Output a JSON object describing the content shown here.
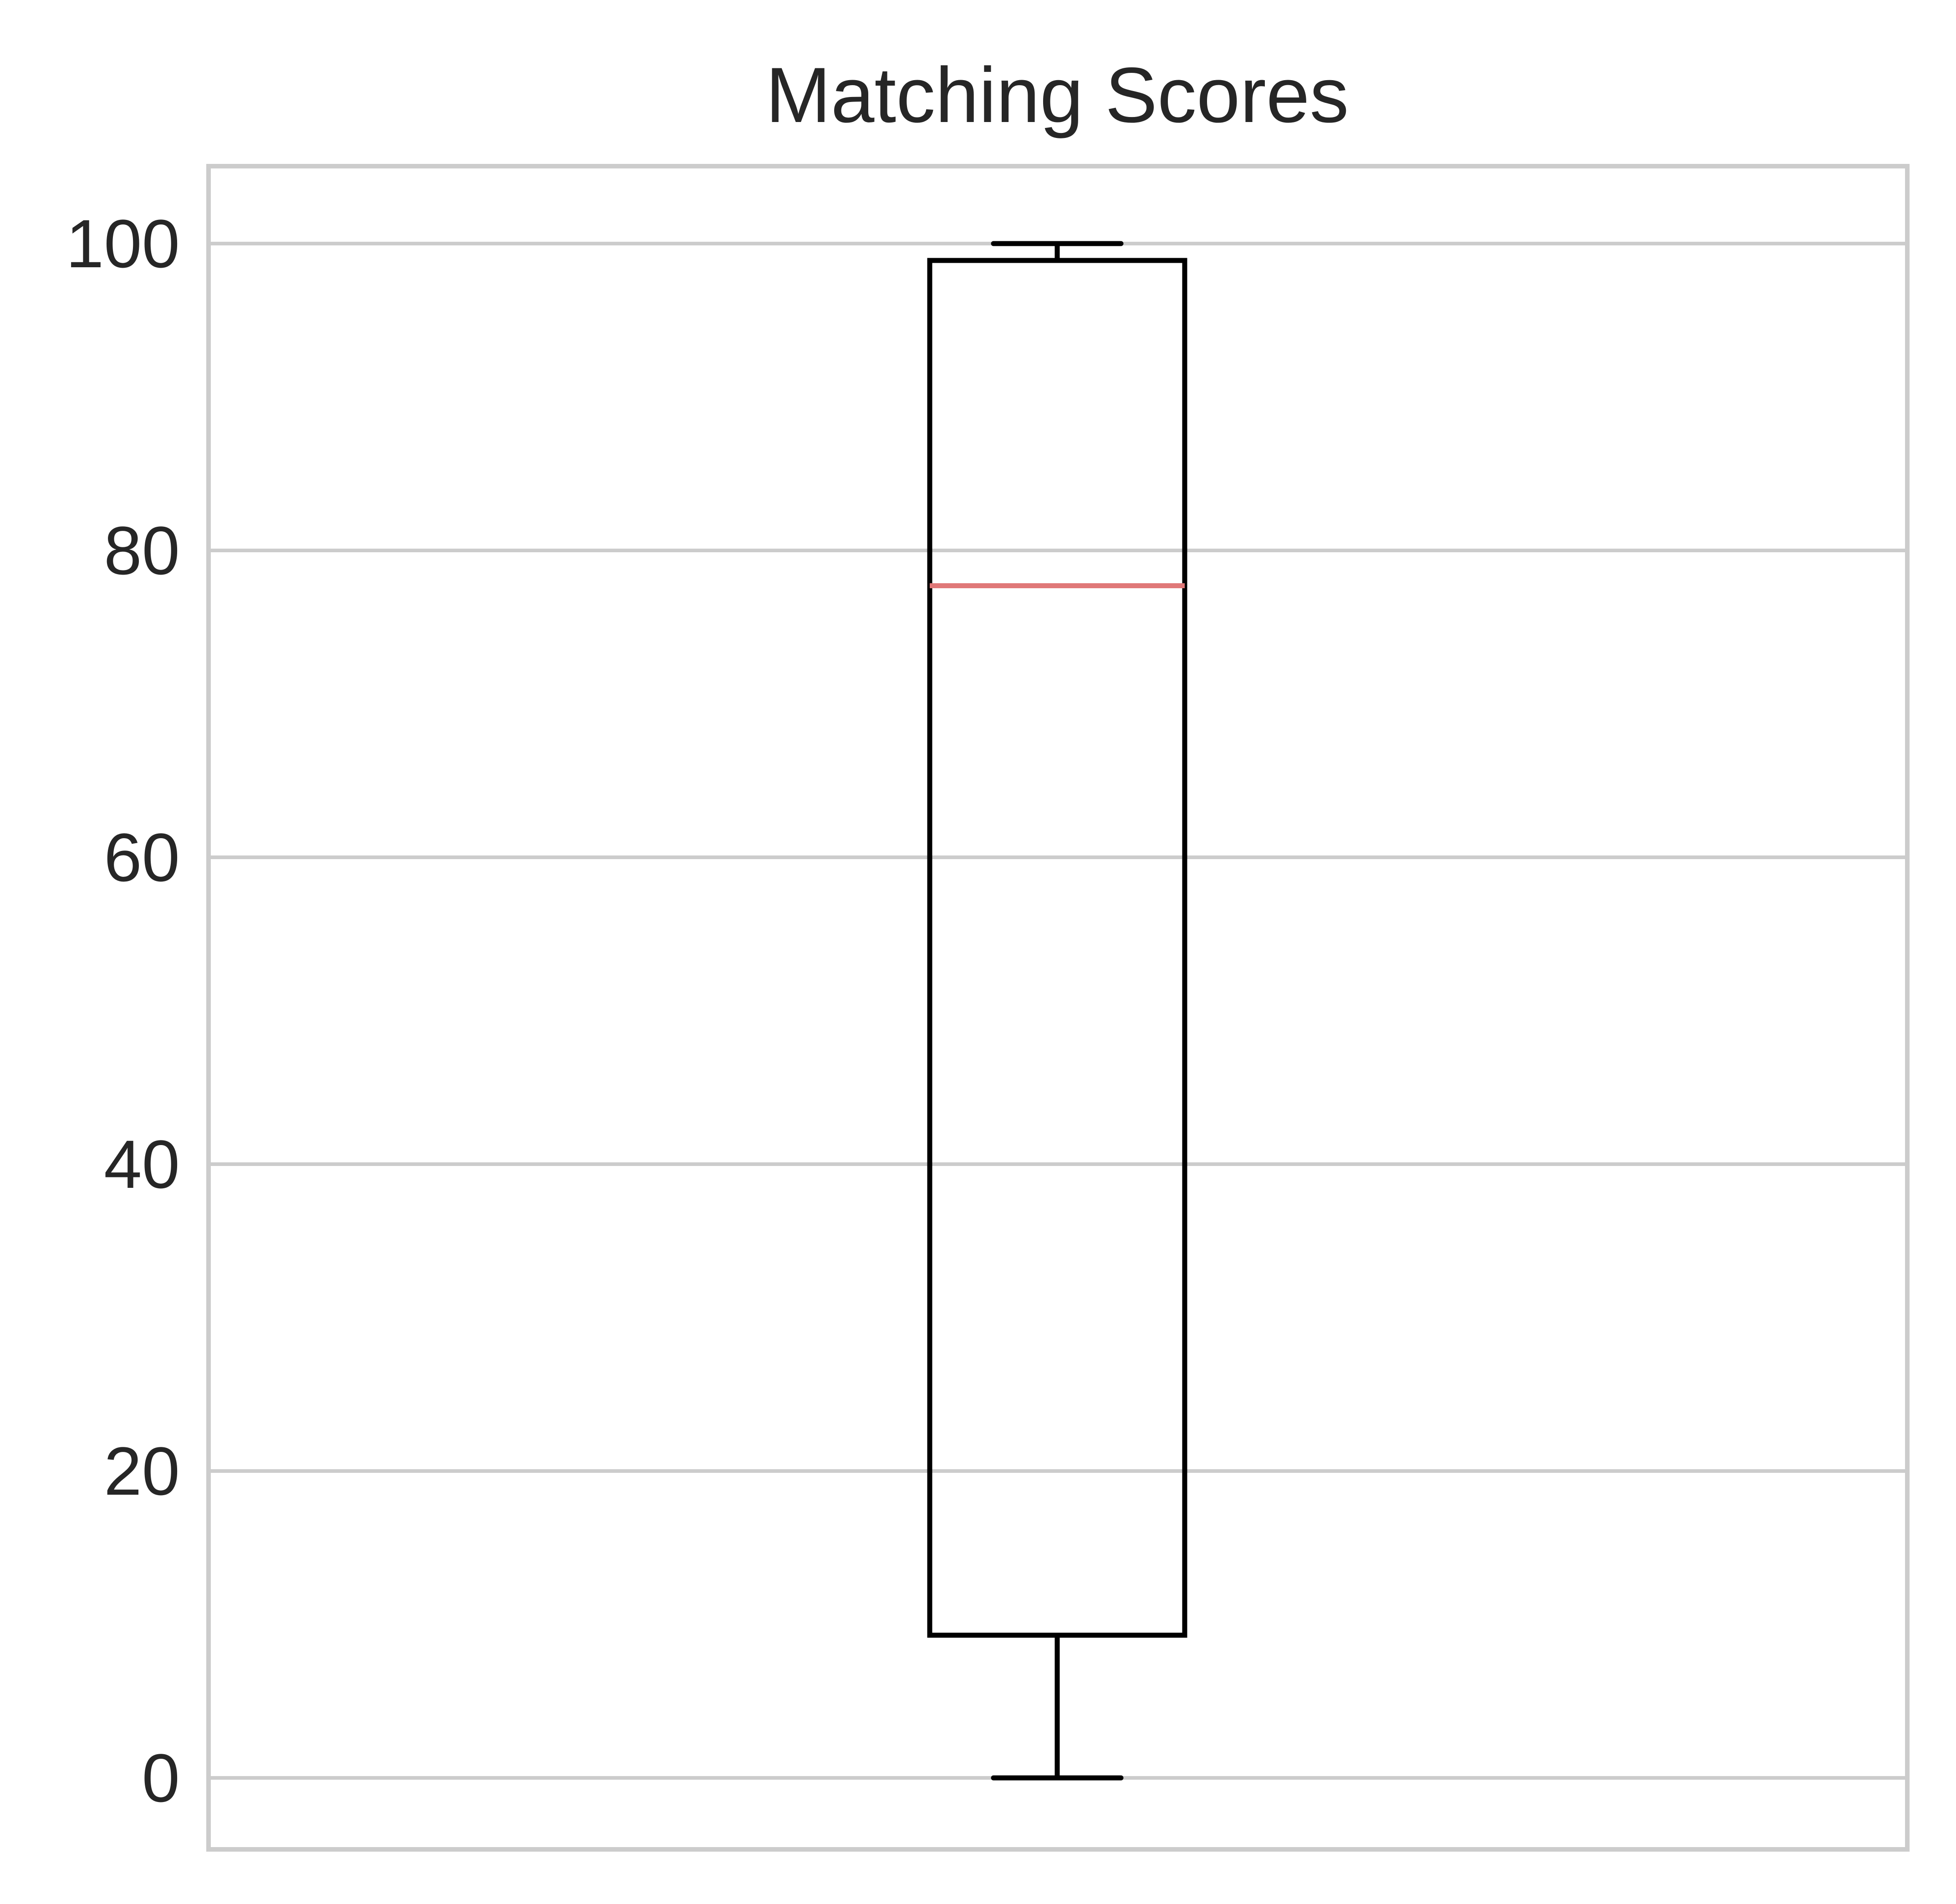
{
  "chart_data": {
    "type": "box",
    "title": "Matching Scores",
    "xlabel": "",
    "ylabel": "",
    "ylim": [
      -5,
      105
    ],
    "yticks": [
      0,
      20,
      40,
      60,
      80,
      100
    ],
    "ytick_labels": [
      "0",
      "20",
      "40",
      "60",
      "80",
      "100"
    ],
    "grid": "horizontal",
    "series": [
      {
        "name": "Matching Scores",
        "whisker_low": 0,
        "q1": 9.3,
        "median": 77.7,
        "q3": 98.9,
        "whisker_high": 100
      }
    ],
    "colors": {
      "box": "#000000",
      "median": "#e07878",
      "grid": "#cccccc",
      "frame": "#cccccc",
      "text": "#262626"
    }
  }
}
